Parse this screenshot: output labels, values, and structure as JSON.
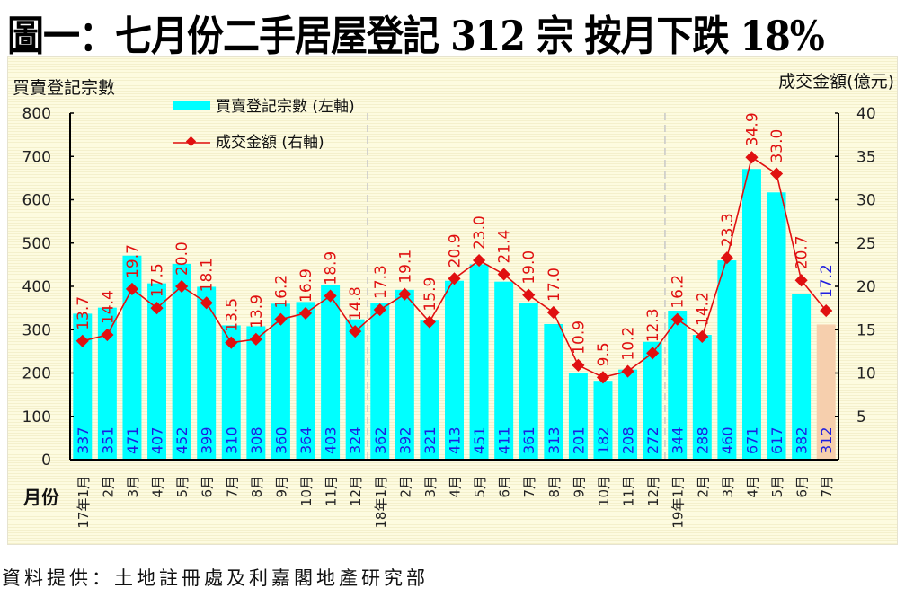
{
  "title": "圖一：七月份二手居屋登記 312 宗  按月下跌 18%",
  "source": "資料提供：土地註冊處及利嘉閣地產研究部",
  "colors": {
    "bar": "#00ffff",
    "bar_highlight": "#f6cfad",
    "line": "#e01010",
    "bar_label": "#1e1ee0",
    "line_label": "#e01010",
    "highlight_label": "#1e1ee0",
    "axis": "#000000"
  },
  "chart_data": {
    "type": "bar+line",
    "title": "圖一：七月份二手居屋登記 312 宗  按月下跌 18%",
    "xlabel": "月份",
    "ylabel_left": "買賣登記宗數",
    "ylabel_right": "成交金額(億元)",
    "ylim_left": [
      0,
      800
    ],
    "yticks_left": [
      0,
      100,
      200,
      300,
      400,
      500,
      600,
      700,
      800
    ],
    "ylim_right": [
      0,
      40
    ],
    "yticks_right": [
      5,
      10,
      15,
      20,
      25,
      30,
      35,
      40
    ],
    "grid": false,
    "legend_position": "top-left",
    "categories": [
      "17年1月",
      "2月",
      "3月",
      "4月",
      "5月",
      "6月",
      "7月",
      "8月",
      "9月",
      "10月",
      "11月",
      "12月",
      "18年1月",
      "2月",
      "3月",
      "4月",
      "5月",
      "6月",
      "7月",
      "8月",
      "9月",
      "10月",
      "11月",
      "12月",
      "19年1月",
      "2月",
      "3月",
      "4月",
      "5月",
      "6月",
      "7月"
    ],
    "year_separators_after_index": [
      11,
      23
    ],
    "highlight_index": 30,
    "series": [
      {
        "name": "買賣登記宗數 (左軸)",
        "type": "bar",
        "axis": "left",
        "values": [
          337,
          351,
          471,
          407,
          452,
          399,
          310,
          308,
          360,
          364,
          403,
          324,
          362,
          392,
          321,
          413,
          451,
          411,
          361,
          313,
          201,
          182,
          208,
          272,
          344,
          288,
          460,
          671,
          617,
          382,
          312
        ]
      },
      {
        "name": "成交金額 (右軸)",
        "type": "line",
        "axis": "right",
        "marker": "diamond",
        "values": [
          13.7,
          14.4,
          19.7,
          17.5,
          20.0,
          18.1,
          13.5,
          13.9,
          16.2,
          16.9,
          18.9,
          14.8,
          17.3,
          19.1,
          15.9,
          20.9,
          23.0,
          21.4,
          19.0,
          17.0,
          10.9,
          9.5,
          10.2,
          12.3,
          16.2,
          14.2,
          23.3,
          34.9,
          33.0,
          20.7,
          17.2
        ]
      }
    ]
  }
}
